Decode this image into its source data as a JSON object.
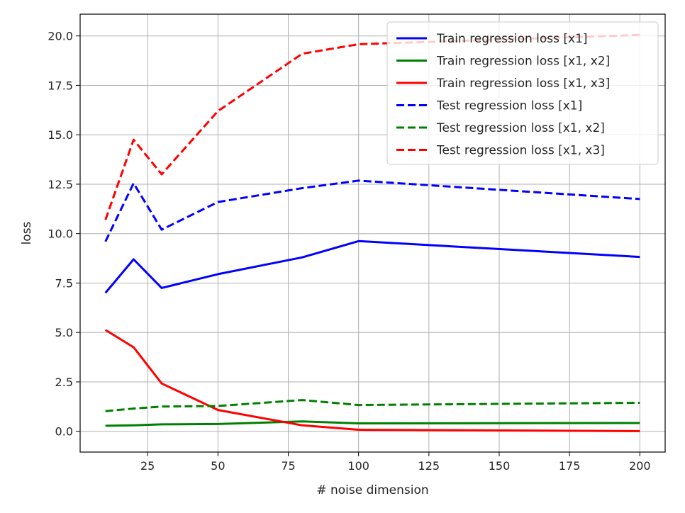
{
  "chart_data": {
    "type": "line",
    "title": "",
    "xlabel": "# noise dimension",
    "ylabel": "loss",
    "xlim": [
      1,
      209
    ],
    "ylim": [
      -1.05,
      21.1
    ],
    "xticks": [
      25,
      50,
      75,
      100,
      125,
      150,
      175,
      200
    ],
    "yticks": [
      0.0,
      2.5,
      5.0,
      7.5,
      10.0,
      12.5,
      15.0,
      17.5,
      20.0
    ],
    "xtick_labels": [
      "25",
      "50",
      "75",
      "100",
      "125",
      "150",
      "175",
      "200"
    ],
    "ytick_labels": [
      "0.0",
      "2.5",
      "5.0",
      "7.5",
      "10.0",
      "12.5",
      "15.0",
      "17.5",
      "20.0"
    ],
    "grid": true,
    "legend_position": "top-right",
    "x": [
      10,
      20,
      30,
      50,
      80,
      100,
      200
    ],
    "series": [
      {
        "name": "Train regression loss [x1]",
        "color": "#0000ff",
        "style": "solid",
        "values": [
          7.0,
          8.7,
          7.25,
          7.95,
          8.8,
          9.62,
          8.82
        ]
      },
      {
        "name": "Train regression loss [x1, x2]",
        "color": "#008000",
        "style": "solid",
        "values": [
          0.28,
          0.3,
          0.35,
          0.37,
          0.5,
          0.4,
          0.42
        ]
      },
      {
        "name": "Train regression loss [x1, x3]",
        "color": "#ff0000",
        "style": "solid",
        "values": [
          5.13,
          4.25,
          2.42,
          1.08,
          0.3,
          0.08,
          0.01
        ]
      },
      {
        "name": "Test regression loss [x1]",
        "color": "#0000ff",
        "style": "dashed",
        "values": [
          9.6,
          12.55,
          10.2,
          11.6,
          12.3,
          12.68,
          11.75
        ]
      },
      {
        "name": "Test regression loss [x1, x2]",
        "color": "#008000",
        "style": "dashed",
        "values": [
          1.02,
          1.15,
          1.25,
          1.28,
          1.58,
          1.33,
          1.44
        ]
      },
      {
        "name": "Test regression loss [x1, x3]",
        "color": "#ff0000",
        "style": "dashed",
        "values": [
          10.7,
          14.75,
          13.0,
          16.2,
          19.1,
          19.58,
          20.05
        ]
      }
    ]
  }
}
